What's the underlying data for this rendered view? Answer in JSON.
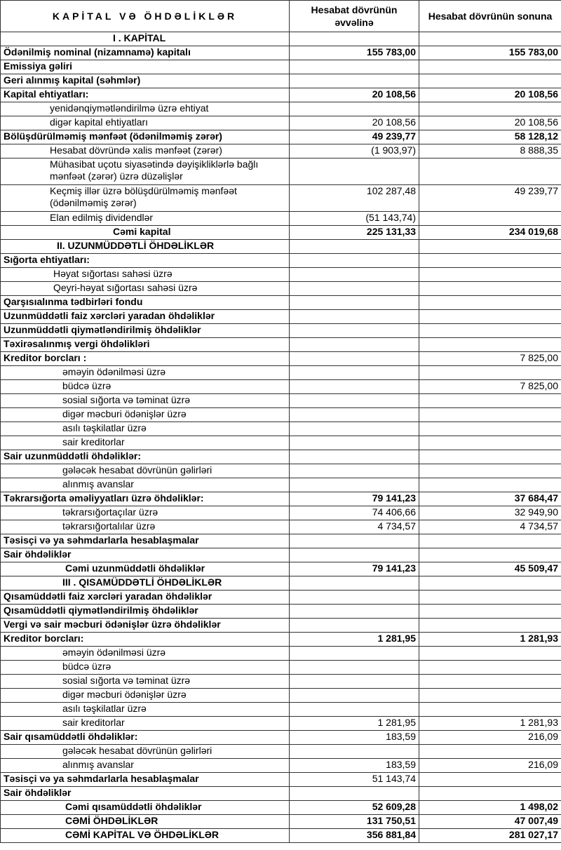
{
  "header": {
    "title": "KAPİTAL VƏ  ÖHDƏLİKLƏR",
    "col1": "Hesabat dövrünün əvvəlinə",
    "col2": "Hesabat dövrünün sonuna"
  },
  "rows": [
    {
      "label": "I . KAPİTAL",
      "start": "",
      "end": "",
      "bold": true,
      "bold_values": false,
      "indent": 5
    },
    {
      "label": "Ödənilmiş nominal (nizamnamə) kapitalı",
      "start": "155 783,00",
      "end": "155 783,00",
      "bold": true,
      "bold_values": true,
      "indent": 0
    },
    {
      "label": "Emissiya gəliri",
      "start": "",
      "end": "",
      "bold": true,
      "bold_values": false,
      "indent": 0
    },
    {
      "label": "Geri alınmış kapital (səhmlər)",
      "start": "",
      "end": "",
      "bold": true,
      "bold_values": false,
      "indent": 0
    },
    {
      "label": "Kapital ehtiyatları:",
      "start": "20 108,56",
      "end": "20 108,56",
      "bold": true,
      "bold_values": true,
      "indent": 0
    },
    {
      "label": "yenidənqiymətləndirilmə üzrə ehtiyat",
      "start": "",
      "end": "",
      "bold": false,
      "bold_values": false,
      "indent": 1
    },
    {
      "label": "digər kapital ehtiyatları",
      "start": "20 108,56",
      "end": "20 108,56",
      "bold": false,
      "bold_values": false,
      "indent": 1
    },
    {
      "label": "Bölüşdürülməmiş mənfəət (ödənilməmiş zərər)",
      "start": "49 239,77",
      "end": "58 128,12",
      "bold": true,
      "bold_values": true,
      "indent": 0
    },
    {
      "label": "Hesabat dövründə xalis mənfəət (zərər)",
      "start": "(1 903,97)",
      "end": "8 888,35",
      "bold": false,
      "bold_values": false,
      "indent": 1
    },
    {
      "label": "Mühasibat uçotu siyasətində dəyişikliklərlə bağlı mənfəət (zərər) üzrə düzəlişlər",
      "start": "",
      "end": "",
      "bold": false,
      "bold_values": false,
      "indent": 1,
      "two": true
    },
    {
      "label": "Keçmiş illər üzrə bölüşdürülməmiş mənfəət (ödənilməmiş zərər)",
      "start": "102 287,48",
      "end": "49 239,77",
      "bold": false,
      "bold_values": false,
      "indent": 1,
      "two": true
    },
    {
      "label": "Elan edilmiş dividendlər",
      "start": "(51 143,74)",
      "end": "",
      "bold": false,
      "bold_values": false,
      "indent": 1
    },
    {
      "label": "Cəmi kapital",
      "start": "225 131,33",
      "end": "234 019,68",
      "bold": true,
      "bold_values": true,
      "indent": 5
    },
    {
      "label": "II. UZUNMÜDDƏTLİ ÖHDƏLİKLƏR",
      "start": "",
      "end": "",
      "bold": true,
      "bold_values": false,
      "indent": 6
    },
    {
      "label": "Sığorta ehtiyatları:",
      "start": "",
      "end": "",
      "bold": true,
      "bold_values": false,
      "indent": 0
    },
    {
      "label": "Həyat sığortası sahəsi üzrə",
      "start": "",
      "end": "",
      "bold": false,
      "bold_values": false,
      "indent": 2
    },
    {
      "label": "Qeyri-həyat sığortası sahəsi üzrə",
      "start": "",
      "end": "",
      "bold": false,
      "bold_values": false,
      "indent": 2
    },
    {
      "label": "Qarşısıalınma tədbirləri fondu",
      "start": "",
      "end": "",
      "bold": true,
      "bold_values": false,
      "indent": 0
    },
    {
      "label": "Uzunmüddətli faiz xərcləri yaradan öhdəliklər",
      "start": "",
      "end": "",
      "bold": true,
      "bold_values": false,
      "indent": 0
    },
    {
      "label": "Uzunmüddətli qiymətləndirilmiş öhdəliklər",
      "start": "",
      "end": "",
      "bold": true,
      "bold_values": false,
      "indent": 0
    },
    {
      "label": "Təxirəsalınmış vergi öhdəlikləri",
      "start": "",
      "end": "",
      "bold": true,
      "bold_values": false,
      "indent": 0
    },
    {
      "label": "Kreditor borcları :",
      "start": "",
      "end": "7 825,00",
      "bold": true,
      "bold_values": false,
      "indent": 0
    },
    {
      "label": "əməyin ödənilməsi üzrə",
      "start": "",
      "end": "",
      "bold": false,
      "bold_values": false,
      "indent": 3
    },
    {
      "label": "büdcə üzrə",
      "start": "",
      "end": "7 825,00",
      "bold": false,
      "bold_values": false,
      "indent": 3
    },
    {
      "label": "sosial sığorta və təminat üzrə",
      "start": "",
      "end": "",
      "bold": false,
      "bold_values": false,
      "indent": 3
    },
    {
      "label": "digər məcburi ödənişlər üzrə",
      "start": "",
      "end": "",
      "bold": false,
      "bold_values": false,
      "indent": 3
    },
    {
      "label": "asılı təşkilatlar üzrə",
      "start": "",
      "end": "",
      "bold": false,
      "bold_values": false,
      "indent": 3
    },
    {
      "label": "sair kreditorlar",
      "start": "",
      "end": "",
      "bold": false,
      "bold_values": false,
      "indent": 3
    },
    {
      "label": "Sair uzunmüddətli öhdəliklər:",
      "start": "",
      "end": "",
      "bold": true,
      "bold_values": false,
      "indent": 0
    },
    {
      "label": "gələcək hesabat dövrünün gəlirləri",
      "start": "",
      "end": "",
      "bold": false,
      "bold_values": false,
      "indent": 3
    },
    {
      "label": "alınmış avanslar",
      "start": "",
      "end": "",
      "bold": false,
      "bold_values": false,
      "indent": 3
    },
    {
      "label": "Təkrarsığorta əməliyyatları üzrə öhdəliklər:",
      "start": "79 141,23",
      "end": "37 684,47",
      "bold": true,
      "bold_values": true,
      "indent": 0
    },
    {
      "label": "təkrarsığortaçılar üzrə",
      "start": "74 406,66",
      "end": "32 949,90",
      "bold": false,
      "bold_values": false,
      "indent": 3
    },
    {
      "label": "təkrarsığortalılar üzrə",
      "start": "4 734,57",
      "end": "4 734,57",
      "bold": false,
      "bold_values": false,
      "indent": 3
    },
    {
      "label": "Təsisçi və ya səhmdarlarla hesablaşmalar",
      "start": "",
      "end": "",
      "bold": true,
      "bold_values": false,
      "indent": 0
    },
    {
      "label": "Sair öhdəliklər",
      "start": "",
      "end": "",
      "bold": true,
      "bold_values": false,
      "indent": 0
    },
    {
      "label": "Cəmi uzunmüddətli öhdəliklər",
      "start": "79 141,23",
      "end": "45 509,47",
      "bold": true,
      "bold_values": true,
      "indent": 4
    },
    {
      "label": "III . QISAMÜDDƏTLİ ÖHDƏLİKLƏR",
      "start": "",
      "end": "",
      "bold": true,
      "bold_values": false,
      "indent": 3
    },
    {
      "label": "Qısamüddətli faiz xərcləri yaradan öhdəliklər",
      "start": "",
      "end": "",
      "bold": true,
      "bold_values": false,
      "indent": 0
    },
    {
      "label": "Qısamüddətli qiymətləndirilmiş öhdəliklər",
      "start": "",
      "end": "",
      "bold": true,
      "bold_values": false,
      "indent": 0
    },
    {
      "label": "Vergi və sair məcburi ödənişlər üzrə öhdəliklər",
      "start": "",
      "end": "",
      "bold": true,
      "bold_values": false,
      "indent": 0
    },
    {
      "label": "Kreditor borcları:",
      "start": "1 281,95",
      "end": "1 281,93",
      "bold": true,
      "bold_values": true,
      "indent": 0
    },
    {
      "label": "əməyin ödənilməsi üzrə",
      "start": "",
      "end": "",
      "bold": false,
      "bold_values": false,
      "indent": 3
    },
    {
      "label": "büdcə üzrə",
      "start": "",
      "end": "",
      "bold": false,
      "bold_values": false,
      "indent": 3
    },
    {
      "label": "sosial sığorta və təminat üzrə",
      "start": "",
      "end": "",
      "bold": false,
      "bold_values": false,
      "indent": 3
    },
    {
      "label": "digər məcburi ödənişlər üzrə",
      "start": "",
      "end": "",
      "bold": false,
      "bold_values": false,
      "indent": 3
    },
    {
      "label": "asılı təşkilatlar üzrə",
      "start": "",
      "end": "",
      "bold": false,
      "bold_values": false,
      "indent": 3
    },
    {
      "label": "sair kreditorlar",
      "start": "1 281,95",
      "end": "1 281,93",
      "bold": false,
      "bold_values": false,
      "indent": 3
    },
    {
      "label": "Sair qısamüddətli öhdəliklər:",
      "start": "183,59",
      "end": "216,09",
      "bold": true,
      "bold_values": false,
      "indent": 0
    },
    {
      "label": "gələcək hesabat dövrünün gəlirləri",
      "start": "",
      "end": "",
      "bold": false,
      "bold_values": false,
      "indent": 3
    },
    {
      "label": "alınmış avanslar",
      "start": "183,59",
      "end": "216,09",
      "bold": false,
      "bold_values": false,
      "indent": 3
    },
    {
      "label": "Təsisçi və ya səhmdarlarla hesablaşmalar",
      "start": "51 143,74",
      "end": "",
      "bold": true,
      "bold_values": false,
      "indent": 0
    },
    {
      "label": "Sair öhdəliklər",
      "start": "",
      "end": "",
      "bold": true,
      "bold_values": false,
      "indent": 0
    },
    {
      "label": "Cəmi qısamüddətli öhdəliklər",
      "start": "52 609,28",
      "end": "1 498,02",
      "bold": true,
      "bold_values": true,
      "indent": 4
    },
    {
      "label": "CƏMİ ÖHDƏLİKLƏR",
      "start": "131 750,51",
      "end": "47 007,49",
      "bold": true,
      "bold_values": true,
      "indent": 4
    },
    {
      "label": "CƏMİ KAPİTAL VƏ ÖHDƏLİKLƏR",
      "start": "356 881,84",
      "end": "281 027,17",
      "bold": true,
      "bold_values": true,
      "indent": 4
    }
  ]
}
